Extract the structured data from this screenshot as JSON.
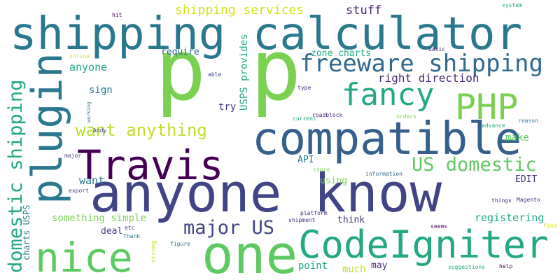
{
  "words": [
    {
      "text": "anyone know",
      "color": "#414487"
    },
    {
      "text": "shipping calculator",
      "color": "#2a788e"
    },
    {
      "text": "p",
      "color": "#7ad151"
    },
    {
      "text": "p",
      "color": "#7ad151"
    },
    {
      "text": "CodeIgniter",
      "color": "#22a884"
    },
    {
      "text": "compatible",
      "color": "#355f8d"
    },
    {
      "text": "one",
      "color": "#5ec962"
    },
    {
      "text": "Travis",
      "color": "#440154"
    },
    {
      "text": "plugin",
      "color": "#2a788e"
    },
    {
      "text": "nice",
      "color": "#5ec962"
    },
    {
      "text": "PHP",
      "color": "#7ad151"
    },
    {
      "text": "fancy",
      "color": "#22a884"
    },
    {
      "text": "freeware shipping",
      "color": "#31688e"
    },
    {
      "text": "domestic shipping",
      "color": "#22a884"
    },
    {
      "text": "US domestic",
      "color": "#5ec962"
    },
    {
      "text": "want anything",
      "color": "#bddf26"
    },
    {
      "text": "major US",
      "color": "#414487"
    },
    {
      "text": "shipping services",
      "color": "#d2e21b"
    },
    {
      "text": "stuff",
      "color": "#482878"
    },
    {
      "text": "right direction",
      "color": "#482878"
    },
    {
      "text": "zone charts",
      "color": "#22a884"
    },
    {
      "text": "USPS provides",
      "color": "#22a884"
    },
    {
      "text": "require",
      "color": "#31688e"
    },
    {
      "text": "anyone",
      "color": "#22a884"
    },
    {
      "text": "sign",
      "color": "#2a788e"
    },
    {
      "text": "try",
      "color": "#46327e"
    },
    {
      "text": "registering",
      "color": "#22a884"
    },
    {
      "text": "make",
      "color": "#5ec962"
    },
    {
      "text": "EDIT",
      "color": "#46327e"
    },
    {
      "text": "want",
      "color": "#2a788e"
    },
    {
      "text": "API",
      "color": "#2a788e"
    },
    {
      "text": "using",
      "color": "#7ad151"
    },
    {
      "text": "something simple",
      "color": "#7ad151"
    },
    {
      "text": "deal",
      "color": "#414487"
    },
    {
      "text": "think",
      "color": "#46327e"
    },
    {
      "text": "point",
      "color": "#22a884"
    },
    {
      "text": "much",
      "color": "#bddf26"
    },
    {
      "text": "may",
      "color": "#482878"
    },
    {
      "text": "charts USPS",
      "color": "#2a788e"
    },
    {
      "text": "strong",
      "color": "#bddf26"
    },
    {
      "text": "hit",
      "color": "#440154"
    },
    {
      "text": "system",
      "color": "#22a884"
    },
    {
      "text": "online",
      "color": "#bddf26"
    },
    {
      "text": "able",
      "color": "#414487"
    },
    {
      "text": "basic",
      "color": "#482878"
    },
    {
      "text": "type",
      "color": "#482878"
    },
    {
      "text": "current",
      "color": "#22a884"
    },
    {
      "text": "roadblock",
      "color": "#482878"
    },
    {
      "text": "orders",
      "color": "#7ad151"
    },
    {
      "text": "reason",
      "color": "#2a788e"
    },
    {
      "text": "advance",
      "color": "#22a884"
    },
    {
      "text": "working",
      "color": "#2a788e"
    },
    {
      "text": "Andy",
      "color": "#414487"
    },
    {
      "text": "major",
      "color": "#414487"
    },
    {
      "text": "export",
      "color": "#414487"
    },
    {
      "text": "store",
      "color": "#7ad151"
    },
    {
      "text": "information",
      "color": "#31688e"
    },
    {
      "text": "things",
      "color": "#482878"
    },
    {
      "text": "Magento",
      "color": "#46327e"
    },
    {
      "text": "platform",
      "color": "#46327e"
    },
    {
      "text": "shipment",
      "color": "#46327e"
    },
    {
      "text": "etc",
      "color": "#46327e"
    },
    {
      "text": "Thank",
      "color": "#2a788e"
    },
    {
      "text": "figure",
      "color": "#2a788e"
    },
    {
      "text": "seems",
      "color": "#440154"
    },
    {
      "text": "find",
      "color": "#d2e21b"
    },
    {
      "text": "suggestions",
      "color": "#22a884"
    },
    {
      "text": "help",
      "color": "#440154"
    }
  ]
}
